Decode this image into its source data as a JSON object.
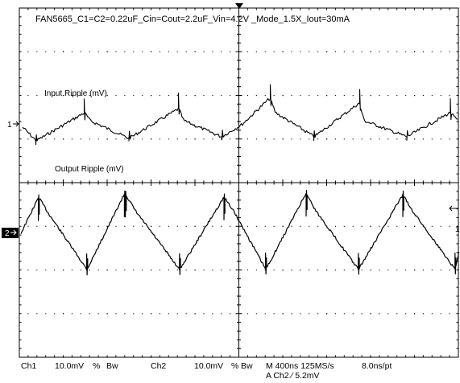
{
  "header": {
    "title": "FAN5665_C1=C2=0.22uF_Cin=Cout=2.2uF_Vin=4.2V _Mode_1.5X_Iout=30mA"
  },
  "traces": {
    "input": {
      "label": "Input Ripple (mV)",
      "channel_marker": "1"
    },
    "output": {
      "label": "Output Ripple (mV)",
      "channel_marker": "2"
    }
  },
  "status_bar": {
    "ch1": "Ch1",
    "ch1_scale": "10.0mV",
    "ch1_bw": "Bw",
    "ch2": "Ch2",
    "ch2_scale": "10.0mV",
    "ch2_bw": "Bw",
    "timebase": "M 400ns 125MS/s",
    "resolution": "8.0ns/pt",
    "trigger": "A  Ch2  ∕  5.2mV"
  },
  "grid": {
    "divisions_x": 10,
    "divisions_y": 8
  },
  "colors": {
    "background": "#ffffff",
    "trace": "#000000",
    "grid": "#000000"
  }
}
